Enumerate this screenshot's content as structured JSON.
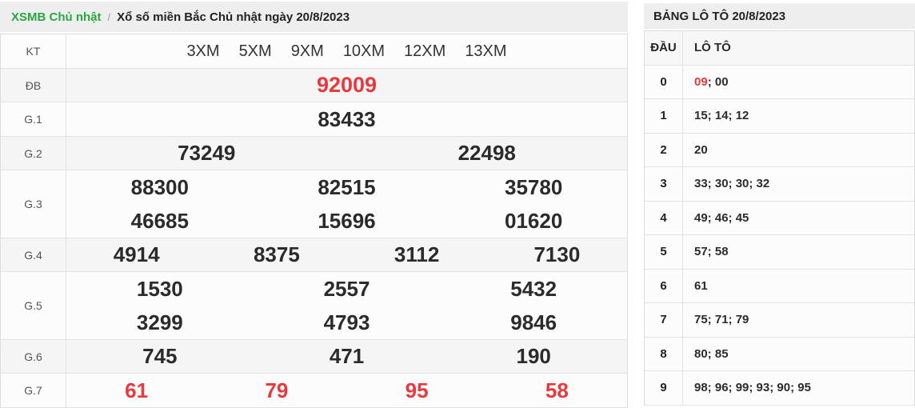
{
  "colors": {
    "accent_green": "#28a745",
    "accent_red": "#e8393d"
  },
  "breadcrumb": {
    "link": "XSMB Chủ nhật",
    "separator": "/",
    "title": "Xổ số miền Bắc Chủ nhật ngày 20/8/2023"
  },
  "results": {
    "rows": [
      {
        "label": "KT",
        "values": [
          "3XM",
          "5XM",
          "9XM",
          "10XM",
          "12XM",
          "13XM"
        ]
      },
      {
        "label": "ĐB",
        "values": [
          "92009"
        ]
      },
      {
        "label": "G.1",
        "values": [
          "83433"
        ]
      },
      {
        "label": "G.2",
        "values": [
          "73249",
          "22498"
        ]
      },
      {
        "label": "G.3",
        "lines": [
          [
            "88300",
            "82515",
            "35780"
          ],
          [
            "46685",
            "15696",
            "01620"
          ]
        ]
      },
      {
        "label": "G.4",
        "values": [
          "4914",
          "8375",
          "3112",
          "7130"
        ]
      },
      {
        "label": "G.5",
        "lines": [
          [
            "1530",
            "2557",
            "5432"
          ],
          [
            "3299",
            "4793",
            "9846"
          ]
        ]
      },
      {
        "label": "G.6",
        "values": [
          "745",
          "471",
          "190"
        ]
      },
      {
        "label": "G.7",
        "values": [
          "61",
          "79",
          "95",
          "58"
        ]
      }
    ]
  },
  "loto": {
    "title": "BẢNG LÔ TÔ 20/8/2023",
    "headers": {
      "dau": "ĐẦU",
      "loto": "LÔ TÔ"
    },
    "rows": [
      {
        "dau": "0",
        "red": "09",
        "rest": "; 00"
      },
      {
        "dau": "1",
        "text": "15; 14; 12"
      },
      {
        "dau": "2",
        "text": "20"
      },
      {
        "dau": "3",
        "text": "33; 30; 30; 32"
      },
      {
        "dau": "4",
        "text": "49; 46; 45"
      },
      {
        "dau": "5",
        "text": "57; 58"
      },
      {
        "dau": "6",
        "text": "61"
      },
      {
        "dau": "7",
        "text": "75; 71; 79"
      },
      {
        "dau": "8",
        "text": "80; 85"
      },
      {
        "dau": "9",
        "text": "98; 96; 99; 93; 90; 95"
      }
    ]
  }
}
